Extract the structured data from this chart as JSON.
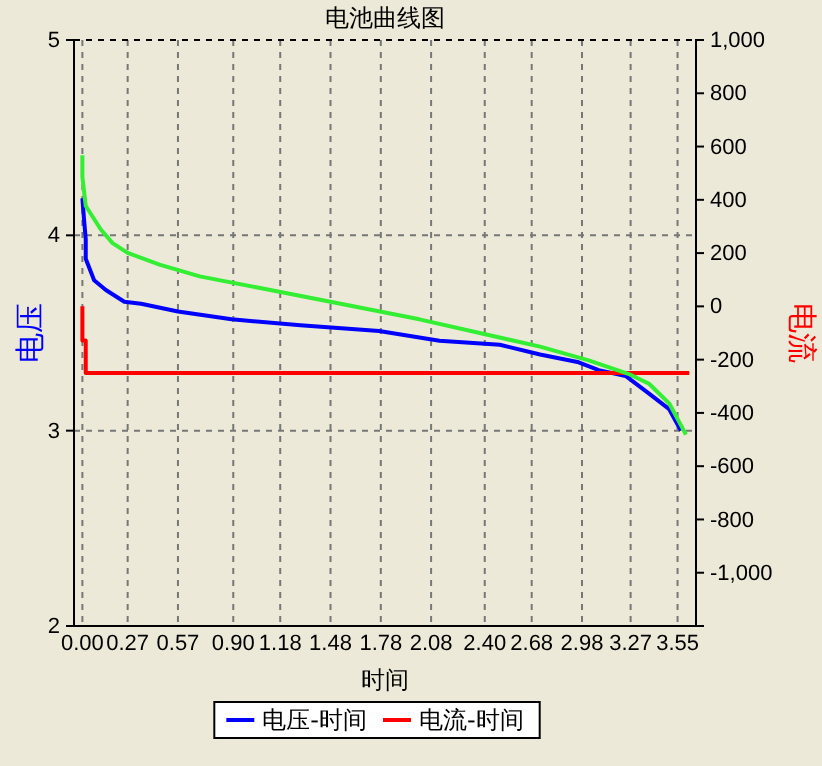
{
  "chart_data": {
    "type": "line",
    "title": "电池曲线图",
    "xlabel": "时间",
    "ylabel": "电压",
    "y2label": "电流",
    "xlim": [
      -0.05,
      3.66
    ],
    "xticks": [
      {
        "value": 0,
        "label": "0.00"
      },
      0.27,
      0.57,
      {
        "value": 0.9,
        "label": "0.90"
      },
      1.18,
      1.48,
      1.78,
      2.08,
      {
        "value": 2.4,
        "label": "2.40"
      },
      2.68,
      2.98,
      3.27,
      3.55
    ],
    "ylim": [
      2,
      5
    ],
    "yticks": [
      2,
      3,
      4,
      5
    ],
    "y2lim": [
      -1200,
      1000
    ],
    "y2ticks": [
      {
        "value": 1000,
        "label": "1,000"
      },
      800,
      600,
      400,
      200,
      0,
      -200,
      -400,
      -600,
      -800,
      {
        "value": -1000,
        "label": "-1,000"
      }
    ],
    "grid": true,
    "legend": "bottom",
    "line_style": "solid",
    "marker": "none",
    "series": [
      {
        "name": "电压-时间",
        "color": "#0000ff",
        "x": [
          0,
          0.01,
          0.02,
          0.02,
          0.07,
          0.14,
          0.25,
          0.35,
          0.57,
          0.89,
          1.3,
          1.77,
          2.13,
          2.49,
          2.73,
          2.96,
          3.08,
          3.24,
          3.38,
          3.5,
          3.57
        ],
        "values": [
          4.19,
          4.08,
          3.98,
          3.88,
          3.77,
          3.72,
          3.66,
          3.65,
          3.61,
          3.57,
          3.54,
          3.51,
          3.46,
          3.44,
          3.39,
          3.35,
          3.31,
          3.28,
          3.19,
          3.11,
          3.0
        ]
      },
      {
        "name": "电流-时间",
        "color": "#ff0000",
        "axis": "y2",
        "x": [
          0,
          0,
          0.02,
          0.02,
          3.62
        ],
        "values": [
          0,
          -128,
          -128,
          -250,
          -250
        ]
      },
      {
        "color": "#33ee33",
        "x": [
          0,
          0,
          0.02,
          0.11,
          0.18,
          0.27,
          0.46,
          0.7,
          1.06,
          1.54,
          2.01,
          2.37,
          2.73,
          3.02,
          3.26,
          3.38,
          3.5,
          3.6
        ],
        "values": [
          4.41,
          4.3,
          4.15,
          4.03,
          3.96,
          3.91,
          3.85,
          3.79,
          3.73,
          3.65,
          3.57,
          3.5,
          3.43,
          3.36,
          3.29,
          3.24,
          3.14,
          2.98
        ]
      }
    ]
  }
}
